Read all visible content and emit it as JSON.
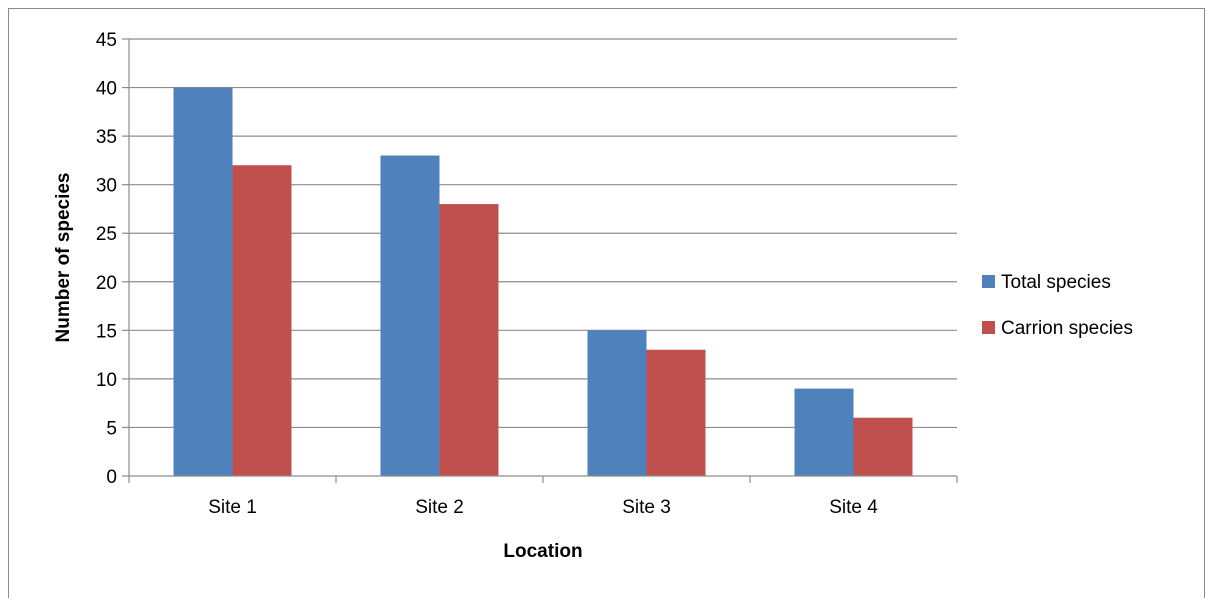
{
  "chart_data": {
    "type": "bar",
    "title": "",
    "xlabel": "Location",
    "ylabel": "Number of species",
    "categories": [
      "Site 1",
      "Site 2",
      "Site 3",
      "Site 4"
    ],
    "series": [
      {
        "name": "Total species",
        "values": [
          40,
          33,
          15,
          9
        ],
        "color": "#4f81bd"
      },
      {
        "name": "Carrion species",
        "values": [
          32,
          28,
          13,
          6
        ],
        "color": "#c0504d"
      }
    ],
    "ylim": [
      0,
      45
    ],
    "yticks": [
      0,
      5,
      10,
      15,
      20,
      25,
      30,
      35,
      40,
      45
    ],
    "grid": true,
    "legend_position": "right"
  }
}
